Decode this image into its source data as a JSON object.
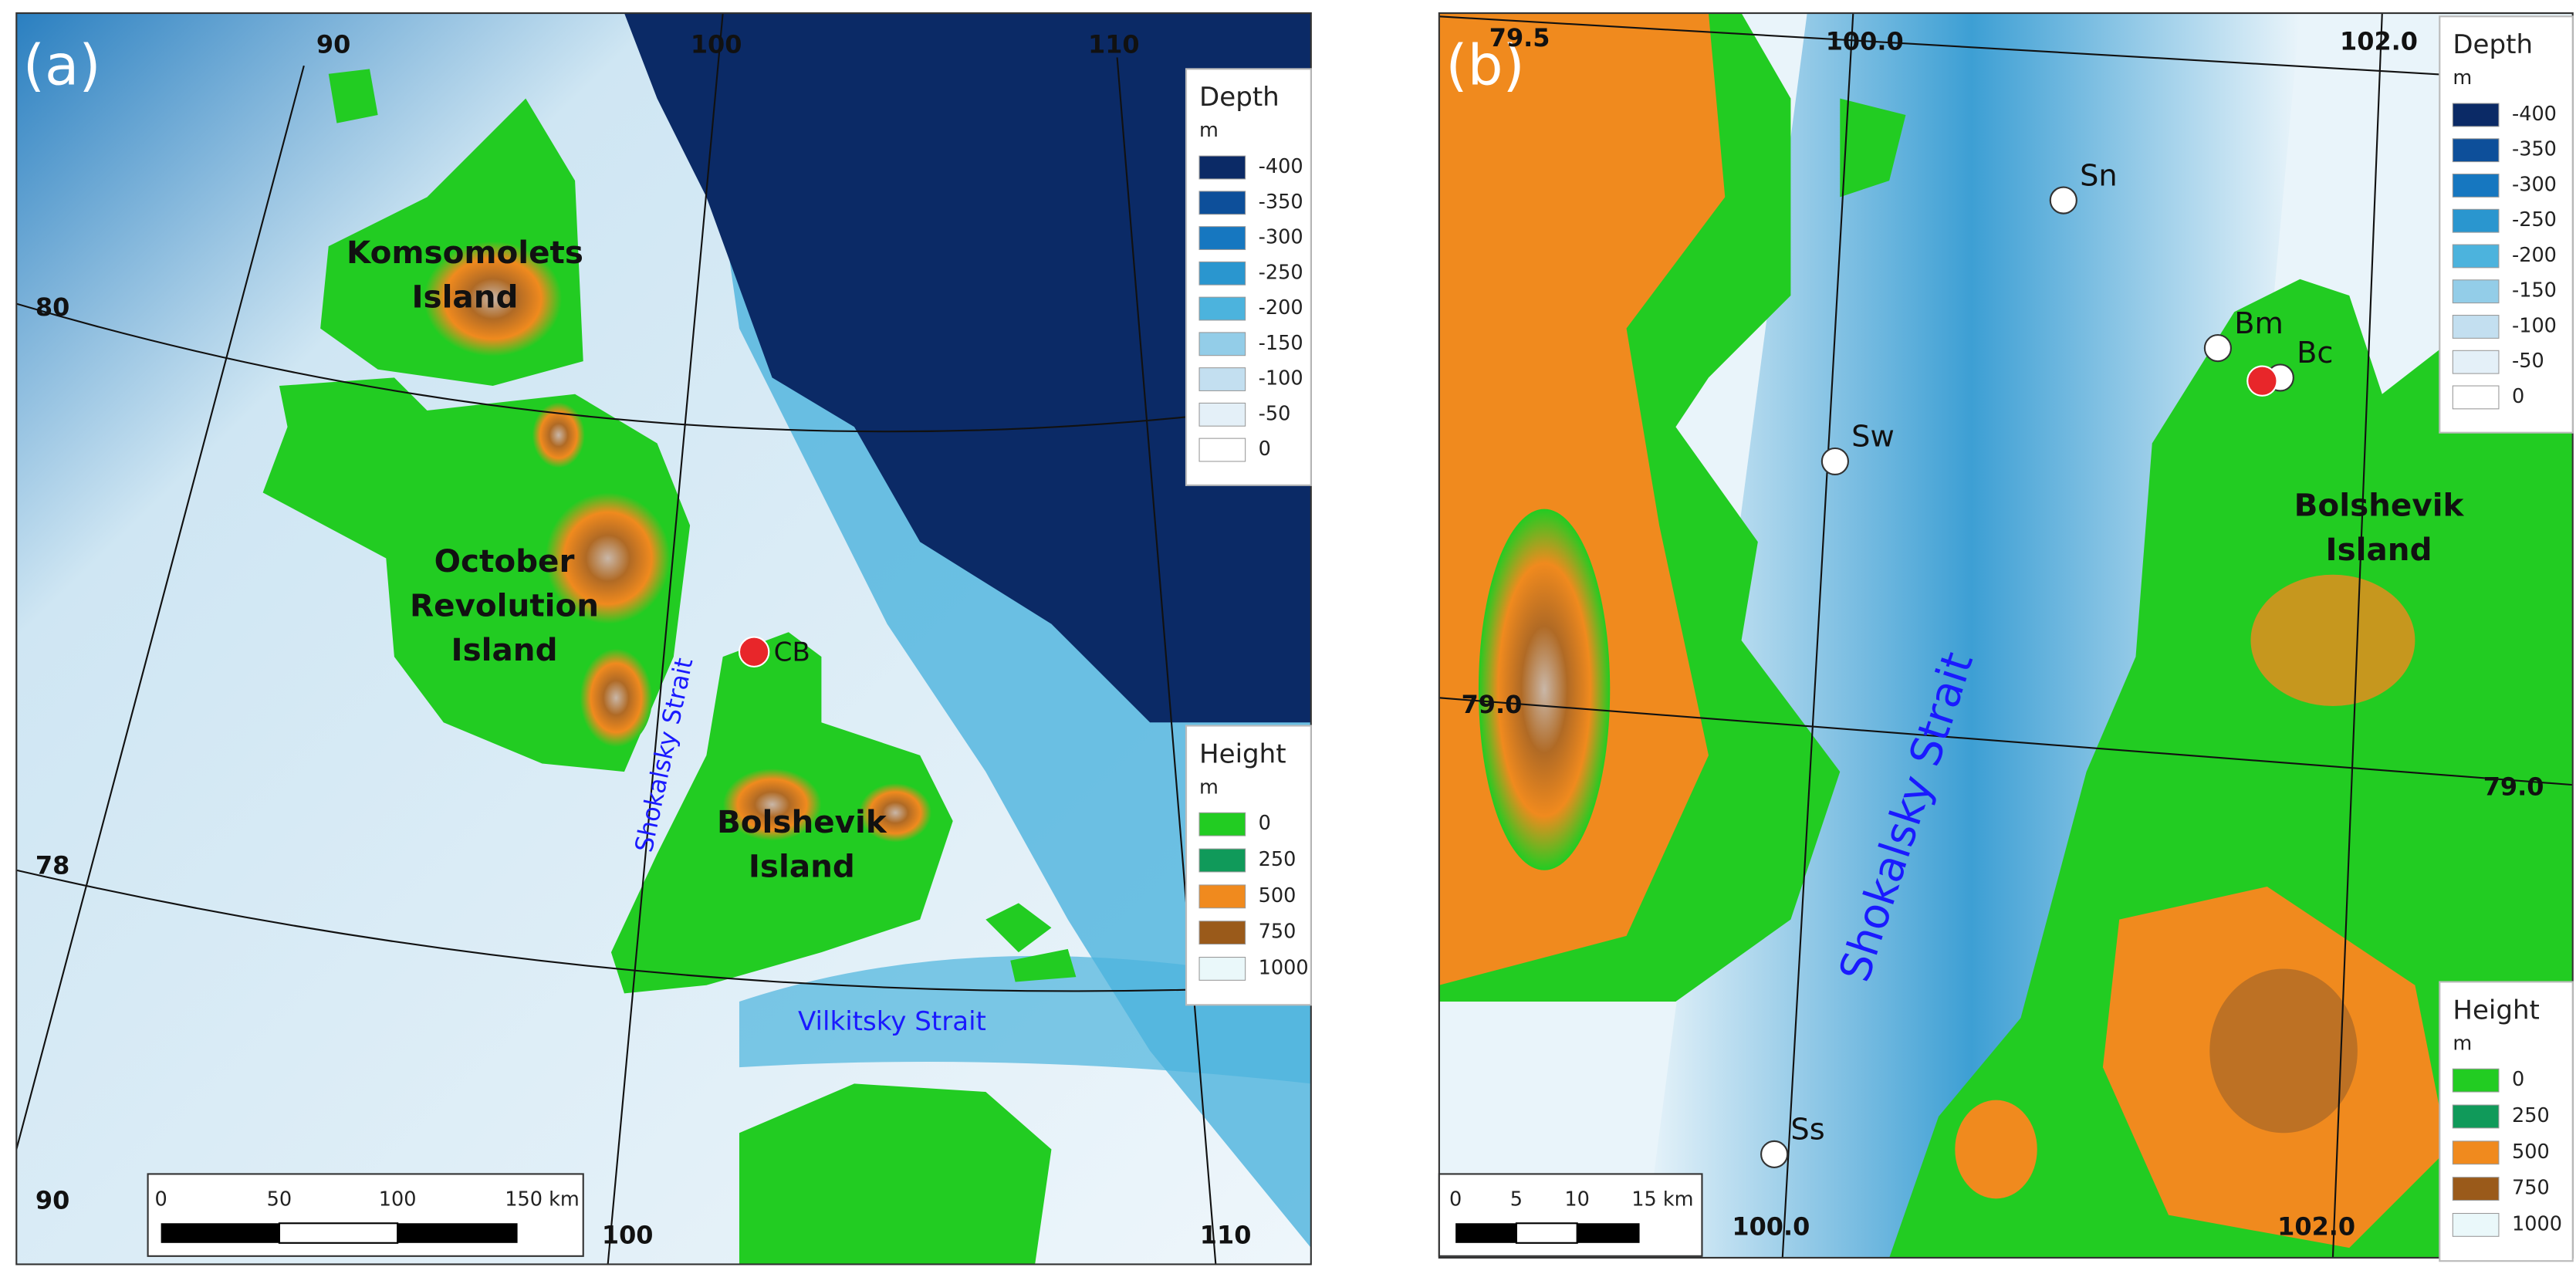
{
  "panels": [
    {
      "label": "(a)",
      "graticule_labels": [
        "90",
        "100",
        "110",
        "80",
        "78",
        "90",
        "100",
        "110"
      ],
      "places": [
        [
          "Komsomolets",
          "Island"
        ],
        [
          "October",
          "Revolution",
          "Island"
        ],
        [
          "Bolshevik",
          "Island"
        ],
        [
          "CB"
        ],
        [
          "Shokalsky Strait"
        ],
        [
          "Vilkitsky Strait"
        ]
      ],
      "depth_legend": {
        "title": "Depth",
        "unit": "m",
        "entries": [
          {
            "label": "-400",
            "color": "#0b2a66"
          },
          {
            "label": "-350",
            "color": "#0d4f9a"
          },
          {
            "label": "-300",
            "color": "#1677c0"
          },
          {
            "label": "-250",
            "color": "#2a96cf"
          },
          {
            "label": "-200",
            "color": "#4cb3dd"
          },
          {
            "label": "-150",
            "color": "#93cde8"
          },
          {
            "label": "-100",
            "color": "#c3dff0"
          },
          {
            "label": "-50",
            "color": "#e4f0f8"
          },
          {
            "label": "0",
            "color": "#ffffff"
          }
        ]
      },
      "height_legend": {
        "title": "Height",
        "unit": "m",
        "entries": [
          {
            "label": "0",
            "color": "#22cc22"
          },
          {
            "label": "250",
            "color": "#109a5a"
          },
          {
            "label": "500",
            "color": "#f08a1e"
          },
          {
            "label": "750",
            "color": "#9a5a1a"
          },
          {
            "label": "1000",
            "color": "#eaf8fa"
          }
        ]
      },
      "scale_bar": [
        "0",
        "50",
        "100",
        "150 km"
      ]
    },
    {
      "label": "(b)",
      "graticule_labels": [
        "79.5",
        "100.0",
        "102.0",
        "79.0",
        "79.0",
        "100.0",
        "102.0"
      ],
      "places": [
        [
          "Shokalsky Strait"
        ],
        [
          "Bolshevik",
          "Island"
        ]
      ],
      "stations": [
        "Sn",
        "Bm",
        "Bc",
        "Sw",
        "Ss"
      ],
      "depth_legend": {
        "title": "Depth",
        "unit": "m",
        "entries": [
          {
            "label": "-400",
            "color": "#0b2a66"
          },
          {
            "label": "-350",
            "color": "#0d4f9a"
          },
          {
            "label": "-300",
            "color": "#1677c0"
          },
          {
            "label": "-250",
            "color": "#2a96cf"
          },
          {
            "label": "-200",
            "color": "#4cb3dd"
          },
          {
            "label": "-150",
            "color": "#93cde8"
          },
          {
            "label": "-100",
            "color": "#c3dff0"
          },
          {
            "label": "-50",
            "color": "#e4f0f8"
          },
          {
            "label": "0",
            "color": "#ffffff"
          }
        ]
      },
      "height_legend": {
        "title": "Height",
        "unit": "m",
        "entries": [
          {
            "label": "0",
            "color": "#22cc22"
          },
          {
            "label": "250",
            "color": "#109a5a"
          },
          {
            "label": "500",
            "color": "#f08a1e"
          },
          {
            "label": "750",
            "color": "#9a5a1a"
          },
          {
            "label": "1000",
            "color": "#eaf8fa"
          }
        ]
      },
      "scale_bar": [
        "0",
        "5",
        "10",
        "15 km"
      ]
    }
  ]
}
